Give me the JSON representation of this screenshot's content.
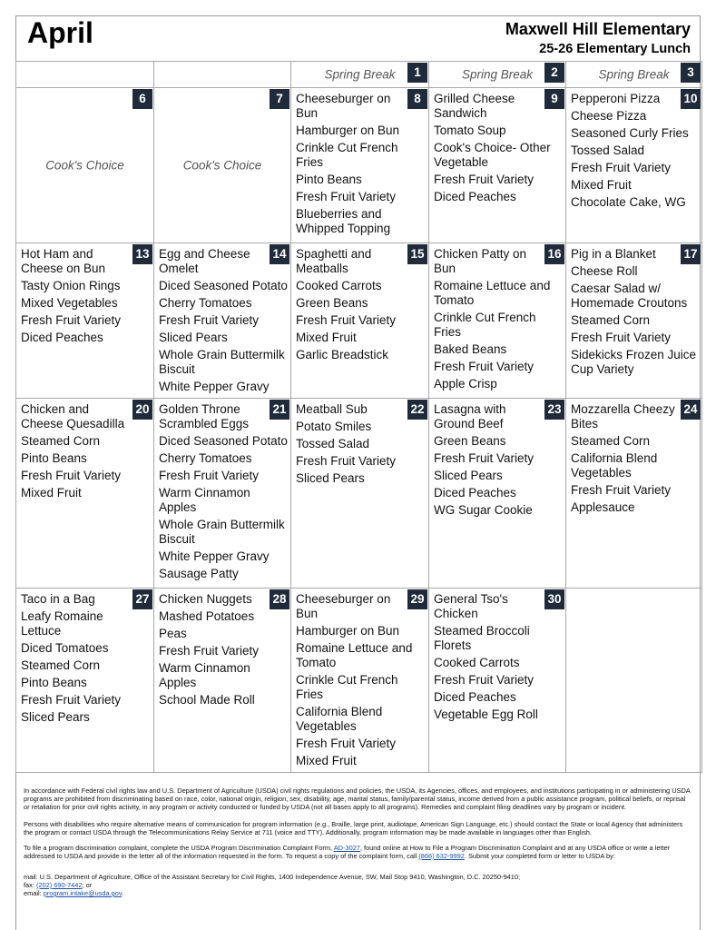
{
  "header": {
    "month": "April",
    "school": "Maxwell Hill Elementary",
    "subtitle": "25-26 Elementary Lunch"
  },
  "weeks": [
    [
      null,
      null,
      {
        "day": 1,
        "note": "Spring Break"
      },
      {
        "day": 2,
        "note": "Spring Break"
      },
      {
        "day": 3,
        "note": "Spring Break"
      }
    ],
    [
      {
        "day": 6,
        "note": "Cook's Choice"
      },
      {
        "day": 7,
        "note": "Cook's Choice"
      },
      {
        "day": 8,
        "items": [
          "Cheeseburger on Bun",
          "Hamburger on Bun",
          "Crinkle Cut French Fries",
          "Pinto Beans",
          "Fresh Fruit Variety",
          "Blueberries and Whipped Topping"
        ]
      },
      {
        "day": 9,
        "items": [
          "Grilled Cheese Sandwich",
          "Tomato Soup",
          "Cook's Choice- Other Vegetable",
          "Fresh Fruit Variety",
          "Diced Peaches"
        ]
      },
      {
        "day": 10,
        "items": [
          "Pepperoni Pizza",
          "Cheese Pizza",
          "Seasoned Curly Fries",
          "Tossed Salad",
          "Fresh Fruit Variety",
          "Mixed Fruit",
          "Chocolate Cake, WG"
        ]
      }
    ],
    [
      {
        "day": 13,
        "items": [
          "Hot Ham and Cheese on Bun",
          "Tasty Onion Rings",
          "Mixed Vegetables",
          "Fresh Fruit Variety",
          "Diced Peaches"
        ]
      },
      {
        "day": 14,
        "items": [
          "Egg and Cheese Omelet",
          "Diced Seasoned Potato",
          "Cherry Tomatoes",
          "Fresh Fruit Variety",
          "Sliced Pears",
          "Whole Grain Buttermilk Biscuit",
          "White Pepper Gravy"
        ]
      },
      {
        "day": 15,
        "items": [
          "Spaghetti and Meatballs",
          "Cooked Carrots",
          "Green Beans",
          "Fresh Fruit Variety",
          "Mixed Fruit",
          "Garlic Breadstick"
        ]
      },
      {
        "day": 16,
        "items": [
          "Chicken Patty on Bun",
          "Romaine Lettuce and Tomato",
          "Crinkle Cut French Fries",
          "Baked Beans",
          "Fresh Fruit Variety",
          "Apple Crisp"
        ]
      },
      {
        "day": 17,
        "items": [
          "Pig in a Blanket",
          "Cheese Roll",
          "Caesar Salad w/ Homemade Croutons",
          "Steamed Corn",
          "Fresh Fruit Variety",
          "Sidekicks Frozen Juice Cup Variety"
        ]
      }
    ],
    [
      {
        "day": 20,
        "items": [
          "Chicken and Cheese Quesadilla",
          "Steamed Corn",
          "Pinto Beans",
          "Fresh Fruit Variety",
          "Mixed Fruit"
        ]
      },
      {
        "day": 21,
        "items": [
          "Golden Throne Scrambled Eggs",
          "Diced Seasoned Potato",
          "Cherry Tomatoes",
          "Fresh Fruit Variety",
          "Warm Cinnamon Apples",
          "Whole Grain Buttermilk Biscuit",
          "White Pepper Gravy",
          "Sausage Patty"
        ]
      },
      {
        "day": 22,
        "items": [
          "Meatball Sub",
          "Potato Smiles",
          "Tossed Salad",
          "Fresh Fruit Variety",
          "Sliced Pears"
        ]
      },
      {
        "day": 23,
        "items": [
          "Lasagna with Ground Beef",
          "Green Beans",
          "Fresh Fruit Variety",
          "Sliced Pears",
          "Diced Peaches",
          "WG Sugar Cookie"
        ]
      },
      {
        "day": 24,
        "items": [
          "Mozzarella Cheezy Bites",
          "Steamed Corn",
          "California Blend Vegetables",
          "Fresh Fruit Variety",
          "Applesauce"
        ]
      }
    ],
    [
      {
        "day": 27,
        "items": [
          "Taco in a Bag",
          "Leafy Romaine Lettuce",
          "Diced Tomatoes",
          "Steamed Corn",
          "Pinto Beans",
          "Fresh Fruit Variety",
          "Sliced Pears"
        ]
      },
      {
        "day": 28,
        "items": [
          "Chicken Nuggets",
          "Mashed Potatoes",
          "Peas",
          "Fresh Fruit Variety",
          "Warm Cinnamon Apples",
          "School Made Roll"
        ]
      },
      {
        "day": 29,
        "items": [
          "Cheeseburger on Bun",
          "Hamburger on Bun",
          "Romaine Lettuce and Tomato",
          "Crinkle Cut French Fries",
          "California Blend Vegetables",
          "Fresh Fruit Variety",
          "Mixed Fruit"
        ]
      },
      {
        "day": 30,
        "items": [
          "General Tso's Chicken",
          "Steamed Broccoli Florets",
          "Cooked Carrots",
          "Fresh Fruit Variety",
          "Diced Peaches",
          "Vegetable Egg Roll"
        ]
      },
      null
    ]
  ],
  "footer": {
    "paragraphs": [
      [
        {
          "text": "In accordance with Federal civil rights law and U.S. Department of Agriculture (USDA) civil rights regulations and policies, the USDA, its Agencies, offices, and employees, and institutions participating in or administering USDA programs are prohibited from discriminating based on race, color, national origin, religion, sex, disability, age, marital status, family/parental status, income derived from a public assistance program, political beliefs, or reprisal or retaliation for prior civil rights activity, in any program or activity conducted or funded by USDA (not all bases apply to all programs). Remedies and complaint filing deadlines vary by program or incident."
        }
      ],
      [
        {
          "text": "Persons with disabilities who require alternative means of communication for program information (e.g., Braille, large print, audiotape, American Sign Language, etc.) should contact the State or local Agency that administers the program or contact USDA through the Telecommunications Relay Service at 711 (voice and TTY). Additionally, program information may be made available in languages other than English."
        }
      ],
      [
        {
          "text": "To file a program discrimination complaint, complete the USDA Program Discrimination Complaint Form, "
        },
        {
          "link": "AD-3027"
        },
        {
          "text": ", found online at How to File a Program Discrimination Complaint and at any USDA office or write a letter addressed to USDA and provide in the letter all of the information requested in the form. To request a copy of the complaint form, call "
        },
        {
          "link": "(866) 632-9992"
        },
        {
          "text": ". Submit your completed form or letter to USDA by:"
        }
      ]
    ],
    "contact_lines": [
      [
        {
          "text": "mail: U.S. Department of Agriculture, Office of the Assistant Secretary for Civil Rights, 1400 Independence Avenue, SW, Mail Stop 9410, Washington, D.C. 20250-9410;"
        }
      ],
      [
        {
          "text": "fax: "
        },
        {
          "link": "(202) 690-7442"
        },
        {
          "text": "; or"
        }
      ],
      [
        {
          "text": "email: "
        },
        {
          "link": "program.intake@usda.gov"
        },
        {
          "text": "."
        }
      ]
    ]
  }
}
